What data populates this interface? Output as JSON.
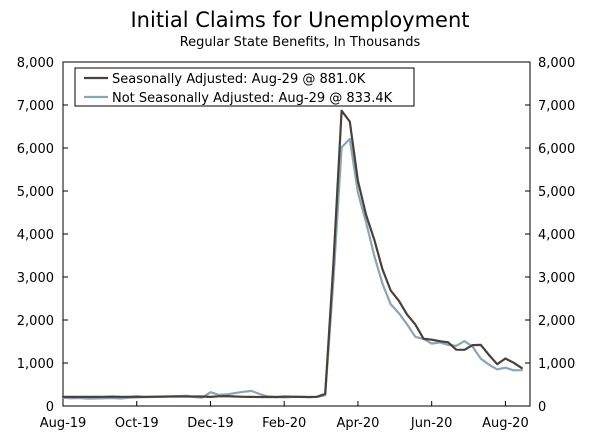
{
  "chart_data": {
    "type": "line",
    "title": "Initial Claims for Unemployment",
    "subtitle": "Regular State Benefits, In Thousands",
    "xlabel": "",
    "ylabel": "",
    "ylim": [
      0,
      8000
    ],
    "yticks": [
      0,
      1000,
      2000,
      3000,
      4000,
      5000,
      6000,
      7000,
      8000
    ],
    "ytick_labels": [
      "0",
      "1,000",
      "2,000",
      "3,000",
      "4,000",
      "5,000",
      "6,000",
      "7,000",
      "8,000"
    ],
    "xlim": [
      0,
      57
    ],
    "xticks": [
      0,
      9,
      18,
      27,
      36,
      45,
      54
    ],
    "xtick_labels": [
      "Aug-19",
      "Oct-19",
      "Dec-19",
      "Feb-20",
      "Apr-20",
      "Jun-20",
      "Aug-20"
    ],
    "legend_position": "top-left",
    "series": [
      {
        "name": "Seasonally Adjusted: Aug-29 @ 881.0K",
        "color": "#4a4038",
        "values": [
          215,
          212,
          214,
          211,
          212,
          215,
          218,
          213,
          215,
          218,
          214,
          216,
          218,
          220,
          222,
          222,
          220,
          220,
          212,
          225,
          230,
          220,
          215,
          211,
          209,
          212,
          210,
          218,
          216,
          212,
          210,
          215,
          282,
          3307,
          6867,
          6615,
          5237,
          4442,
          3867,
          3176,
          2687,
          2446,
          2126,
          1897,
          1566,
          1542,
          1508,
          1482,
          1310,
          1307,
          1416,
          1422,
          1186,
          971,
          1104,
          1006,
          881
        ]
      },
      {
        "name": "Not Seasonally Adjusted: Aug-29 @ 833.4K",
        "color": "#8aa5b8",
        "values": [
          190,
          180,
          185,
          170,
          175,
          180,
          185,
          175,
          190,
          200,
          205,
          210,
          215,
          220,
          230,
          240,
          210,
          195,
          320,
          260,
          270,
          300,
          330,
          350,
          280,
          220,
          210,
          200,
          210,
          215,
          205,
          215,
          251,
          2920,
          6015,
          6212,
          4964,
          4270,
          3490,
          2842,
          2364,
          2158,
          1897,
          1610,
          1560,
          1450,
          1480,
          1420,
          1400,
          1510,
          1380,
          1100,
          960,
          850,
          890,
          830,
          833
        ]
      }
    ]
  }
}
